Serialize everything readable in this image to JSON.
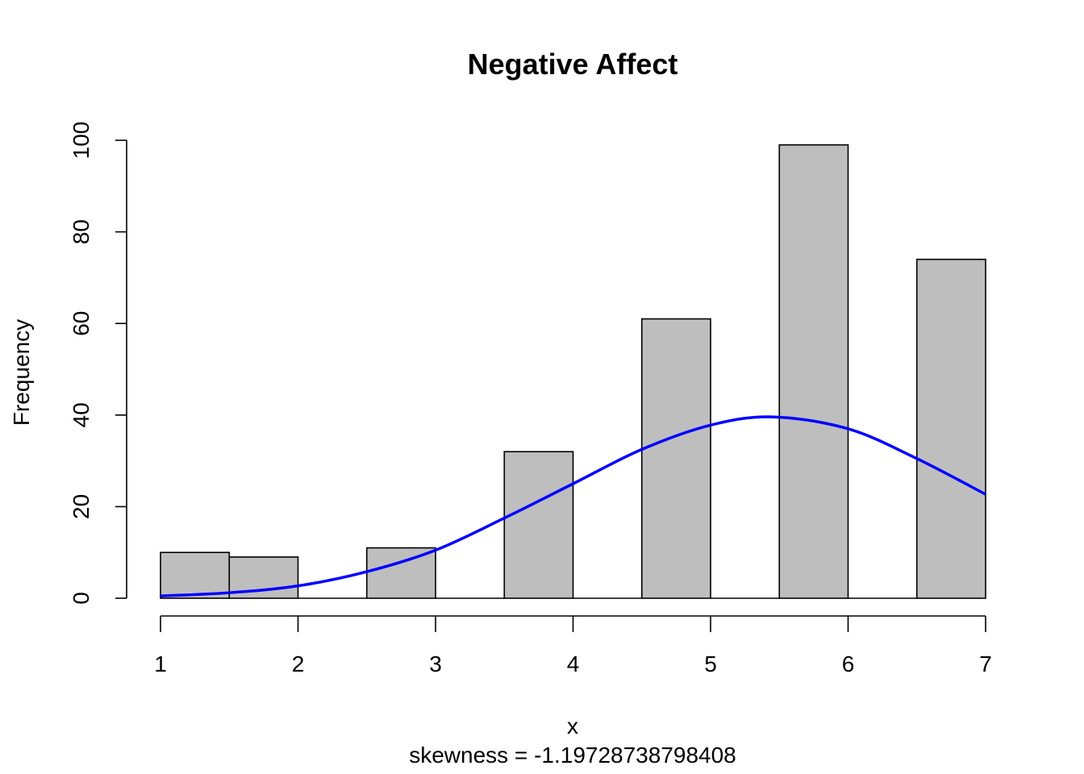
{
  "chart_data": {
    "type": "bar",
    "title": "Negative Affect",
    "xlabel": "x",
    "ylabel": "Frequency",
    "subtitle": "skewness = -1.19728738798408",
    "bins": [
      {
        "x0": 1.0,
        "x1": 1.5,
        "value": 10
      },
      {
        "x0": 1.5,
        "x1": 2.0,
        "value": 9
      },
      {
        "x0": 2.0,
        "x1": 2.5,
        "value": 0
      },
      {
        "x0": 2.5,
        "x1": 3.0,
        "value": 11
      },
      {
        "x0": 3.0,
        "x1": 3.5,
        "value": 0
      },
      {
        "x0": 3.5,
        "x1": 4.0,
        "value": 32
      },
      {
        "x0": 4.0,
        "x1": 4.5,
        "value": 0
      },
      {
        "x0": 4.5,
        "x1": 5.0,
        "value": 61
      },
      {
        "x0": 5.0,
        "x1": 5.5,
        "value": 0
      },
      {
        "x0": 5.5,
        "x1": 6.0,
        "value": 99
      },
      {
        "x0": 6.0,
        "x1": 6.5,
        "value": 0
      },
      {
        "x0": 6.5,
        "x1": 7.0,
        "value": 74
      }
    ],
    "xlim": [
      1,
      7
    ],
    "ylim": [
      0,
      100
    ],
    "x_ticks": [
      1,
      2,
      3,
      4,
      5,
      6,
      7
    ],
    "y_ticks": [
      0,
      20,
      40,
      60,
      80,
      100
    ],
    "overlay_curve": {
      "type": "normal-density",
      "color": "#0000ff",
      "points": [
        [
          1.0,
          0.5
        ],
        [
          1.5,
          1.2
        ],
        [
          2.0,
          2.7
        ],
        [
          2.5,
          5.8
        ],
        [
          3.0,
          10.5
        ],
        [
          3.5,
          17.5
        ],
        [
          4.0,
          25.0
        ],
        [
          4.5,
          32.5
        ],
        [
          5.0,
          37.8
        ],
        [
          5.45,
          39.6
        ],
        [
          6.0,
          37.0
        ],
        [
          6.5,
          30.5
        ],
        [
          7.0,
          22.7
        ]
      ]
    },
    "bar_color": "#bebebe",
    "grid": false
  }
}
